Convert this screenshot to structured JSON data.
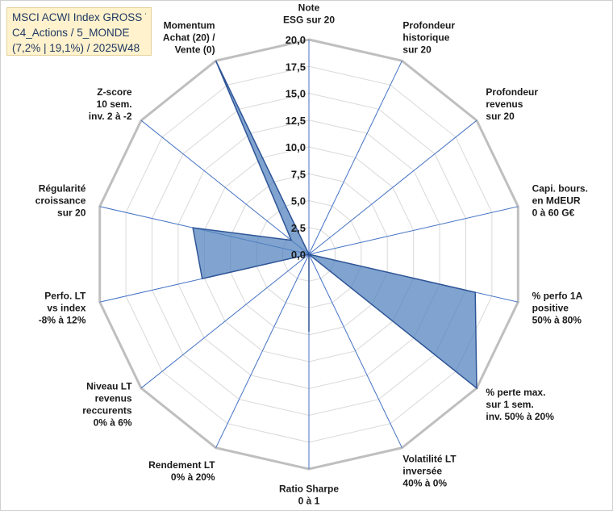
{
  "title": {
    "line1": "MSCI ACWI Index GROSS TR",
    "line2": "C4_Actions / 5_MONDE",
    "line3": "(7,2% | 19,1%) / 2025W48"
  },
  "colors": {
    "series_fill": "#4f81bd",
    "series_stroke": "#2f5597",
    "grid": "#d9d9d9",
    "outer_ring": "#bfbfbf",
    "spoke": "#4472c4",
    "title_bg": "#fff2cc",
    "title_text": "#1f3864"
  },
  "chart_data": {
    "type": "radar",
    "title": "MSCI ACWI Index GROSS TR",
    "rlim": [
      0,
      20
    ],
    "ticks": [
      "0,0",
      "2,5",
      "5,0",
      "7,5",
      "10,0",
      "12,5",
      "15,0",
      "17,5",
      "20,0"
    ],
    "grid": true,
    "categories": [
      [
        "Note",
        "ESG sur 20"
      ],
      [
        "Profondeur",
        "historique",
        "sur 20"
      ],
      [
        "Profondeur",
        "revenus",
        "sur 20"
      ],
      [
        "Capi. bours.",
        "en MdEUR",
        "0 à 60 G€"
      ],
      [
        "% perfo 1A",
        "positive",
        "50% à 80%"
      ],
      [
        "% perte max.",
        "sur 1 sem.",
        "inv. 50% à 20%"
      ],
      [
        "Volatilité LT",
        "inversée",
        "40% à 0%"
      ],
      [
        "Ratio Sharpe",
        "0 à 1"
      ],
      [
        "Rendement LT",
        "0% à 20%"
      ],
      [
        "Niveau LT",
        "revenus",
        "reccurents",
        "0% à 6%"
      ],
      [
        "Perfo. LT",
        "vs index",
        "-8% à 12%"
      ],
      [
        "Régularité",
        "croissance",
        "sur 20"
      ],
      [
        "Z-score",
        "10 sem.",
        "inv. 2 à -2"
      ],
      [
        "Momentum",
        "Achat (20) /",
        "Vente (0)"
      ]
    ],
    "series": [
      {
        "name": "MSCI ACWI Index GROSS TR",
        "values": [
          0,
          0,
          0,
          0,
          15.9,
          20.0,
          0,
          7.2,
          0,
          0,
          10.2,
          11.1,
          2.1,
          20.0
        ]
      }
    ]
  }
}
